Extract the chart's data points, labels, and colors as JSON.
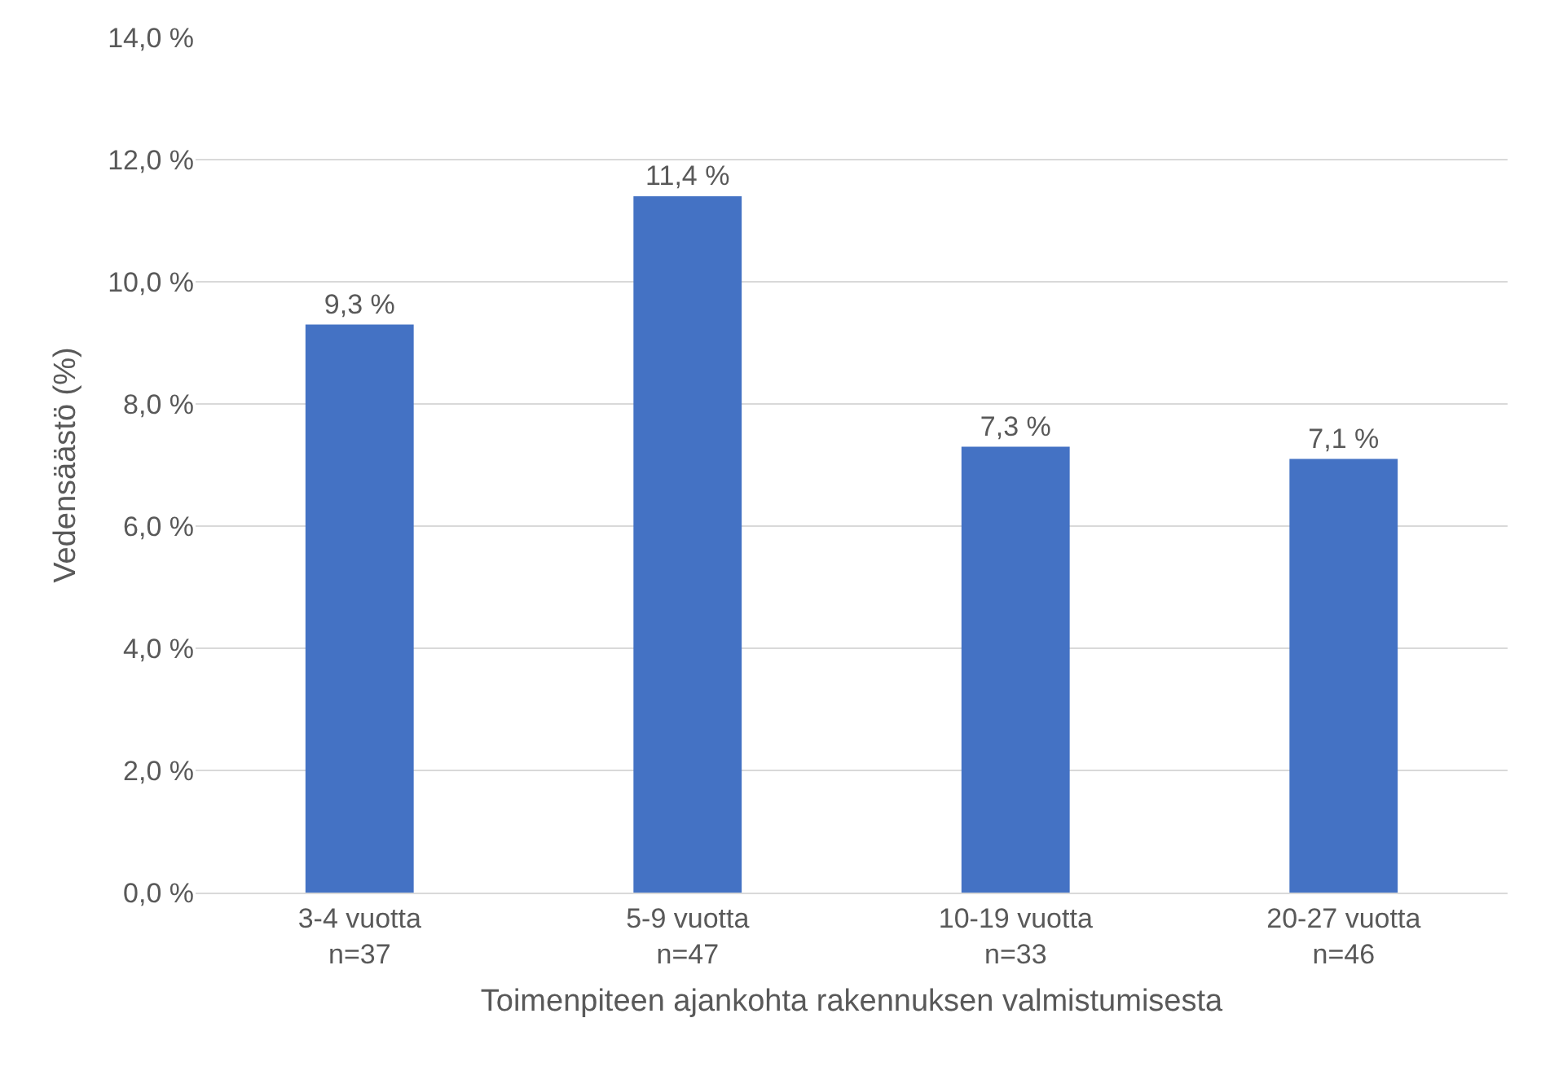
{
  "chart_data": {
    "type": "bar",
    "categories": [
      "3-4 vuotta\nn=37",
      "5-9 vuotta\nn=47",
      "10-19 vuotta\nn=33",
      "20-27 vuotta\nn=46"
    ],
    "values": [
      9.3,
      11.4,
      7.3,
      7.1
    ],
    "value_labels": [
      "9,3 %",
      "11,4 %",
      "7,3 %",
      "7,1 %"
    ],
    "color": "#4472c4",
    "xlabel": "Toimenpiteen ajankohta rakennuksen valmistumisesta",
    "ylabel": "Vedensäästö (%)",
    "ylim": [
      0,
      14
    ],
    "yticks": [
      {
        "value": 0,
        "label": "0,0 %"
      },
      {
        "value": 2,
        "label": "2,0 %"
      },
      {
        "value": 4,
        "label": "4,0 %"
      },
      {
        "value": 6,
        "label": "6,0 %"
      },
      {
        "value": 8,
        "label": "8,0 %"
      },
      {
        "value": 10,
        "label": "10,0 %"
      },
      {
        "value": 12,
        "label": "12,0 %"
      },
      {
        "value": 14,
        "label": "14,0 %"
      }
    ],
    "grid": "y"
  }
}
